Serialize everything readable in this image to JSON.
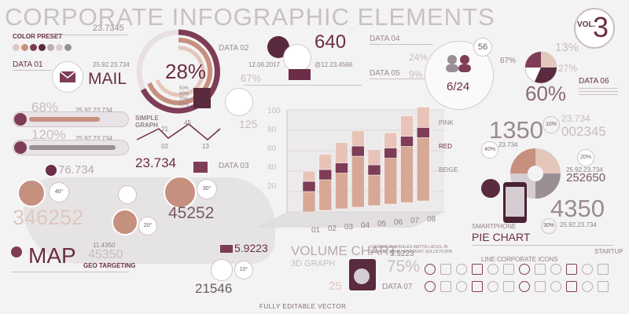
{
  "header": {
    "title": "CORPORATE INFOGRAPHIC ELEMENTS",
    "vol_label": "VOL.",
    "vol_number": "3"
  },
  "color_preset": {
    "label": "COLOR PRESET",
    "swatches": [
      "#e3c7bb",
      "#c6907f",
      "#7e3c56",
      "#5a2a3f",
      "#b9aeb4",
      "#d6cdd2",
      "#9a8f95"
    ]
  },
  "mail": {
    "value": "23.7345",
    "data_label": "DATA 01",
    "date": "25.92.23.734",
    "label": "MAIL"
  },
  "bars_left": {
    "p1": "68%",
    "d1": "25.92.23.734",
    "p2": "120%",
    "d2": "25.92.23.734"
  },
  "donut": {
    "center": "28%",
    "data_label": "DATA 02",
    "legend": [
      "50%",
      "60%",
      "70%",
      "80%"
    ]
  },
  "simple_graph": {
    "label": "SIMPLE GRAPH",
    "points": [
      "21",
      "02",
      "45",
      "13"
    ]
  },
  "mid_top": {
    "value": "640",
    "date": "12.06.2017",
    "id": "@12.23.4566",
    "percent": "67%",
    "value2": "125",
    "data_label": "DATA 03"
  },
  "data45": {
    "data04": "DATA 04",
    "data05": "DATA 05",
    "p24": "24%",
    "p9": "9%",
    "badge": "56",
    "fraction": "6/24",
    "p67": "67%"
  },
  "pie_top": {
    "p13": "13%",
    "p27": "27%",
    "p60": "60%",
    "data_label": "DATA 06"
  },
  "volume_chart": {
    "title": "VOLUME CHART",
    "subtitle": "3D GRAPH",
    "description": "CURABITUR SODALES MATTIS LACUS, IN SODALES URNA HENDRERIT SOLLICITUDIN",
    "y_ticks": [
      "100",
      "80",
      "60",
      "40",
      "20"
    ],
    "legend": [
      "PINK",
      "RED",
      "BEIGE"
    ],
    "categories": [
      "01",
      "02",
      "03",
      "04",
      "05",
      "06",
      "07",
      "08"
    ]
  },
  "chart_data": {
    "type": "bar",
    "title": "VOLUME CHART",
    "categories": [
      "01",
      "02",
      "03",
      "04",
      "05",
      "06",
      "07",
      "08"
    ],
    "series": [
      {
        "name": "BEIGE",
        "values": [
          20,
          30,
          35,
          50,
          30,
          45,
          55,
          62
        ]
      },
      {
        "name": "RED",
        "values": [
          10,
          10,
          10,
          10,
          10,
          10,
          10,
          10
        ]
      },
      {
        "name": "PINK",
        "values": [
          10,
          15,
          20,
          15,
          15,
          15,
          20,
          20
        ]
      }
    ],
    "ylim": [
      0,
      100
    ]
  },
  "right_side": {
    "big": "1350",
    "code1": "23.734",
    "code2": "002345",
    "p10": "10%",
    "p40": "40%",
    "val": "23.734",
    "p20": "20%",
    "date": "25.92.23.734",
    "num": "252650",
    "sp_label": "SMARTPHONE",
    "pie_label": "PIE CHART",
    "p30": "30%",
    "num2": "4350",
    "date2": "25.92.23.734"
  },
  "map": {
    "value1": "76.734",
    "value2": "23.734",
    "value3": "346252",
    "value4": "45252",
    "value5": "11.4350",
    "value6": "45350",
    "label": "MAP",
    "sub": "GEO TARGETING",
    "p40": "40°",
    "p30": "30°",
    "p20": "20°"
  },
  "bottom_mid": {
    "v1": "5.9223",
    "v2": "21546",
    "p10": "10°",
    "v3": "5.9223",
    "p75": "75%",
    "v4": "25",
    "data_label": "DATA 07"
  },
  "icons_label": {
    "line_icons": "LINE CORPORATE ICONS",
    "startup": "STARTUP"
  },
  "footer": "FULLY EDITABLE VECTOR"
}
